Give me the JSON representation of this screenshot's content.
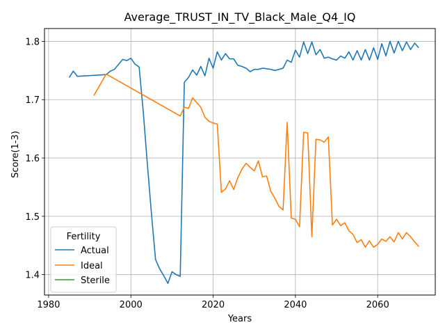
{
  "chart_data": {
    "type": "line",
    "title": "Average_TRUST_IN_TV_Black_Male_Q4_IQ",
    "xlabel": "Years",
    "ylabel": "Score(1-3)",
    "xlim": [
      1979,
      2074
    ],
    "ylim": [
      1.365,
      1.822
    ],
    "xticks": [
      1980,
      2000,
      2020,
      2040,
      2060
    ],
    "yticks": [
      1.4,
      1.5,
      1.6,
      1.7,
      1.8
    ],
    "grid": true,
    "legend": {
      "title": "Fertility",
      "placement": "lower-left"
    },
    "series": [
      {
        "name": "Actual",
        "color": "#1f77b4",
        "x": [
          1985,
          1986,
          1987,
          1994,
          1995,
          1996,
          1998,
          1999,
          2000,
          2001,
          2002,
          2003,
          2004,
          2005,
          2006,
          2007,
          2008,
          2009,
          2010,
          2011,
          2012,
          2013,
          2014,
          2015,
          2016,
          2017,
          2018,
          2019,
          2020,
          2021,
          2022,
          2023,
          2024,
          2025,
          2026,
          2027,
          2028,
          2029,
          2030,
          2031,
          2032,
          2033,
          2034,
          2035,
          2036,
          2037,
          2038,
          2039,
          2040,
          2041,
          2042,
          2043,
          2044,
          2045,
          2046,
          2047,
          2048,
          2049,
          2050,
          2051,
          2052,
          2053,
          2054,
          2055,
          2056,
          2057,
          2058,
          2059,
          2060,
          2061,
          2062,
          2063,
          2064,
          2065,
          2066,
          2067,
          2068,
          2069,
          2070
        ],
        "values": [
          1.738,
          1.749,
          1.74,
          1.743,
          1.749,
          1.752,
          1.769,
          1.767,
          1.771,
          1.761,
          1.756,
          1.68,
          1.59,
          1.505,
          1.426,
          1.41,
          1.398,
          1.385,
          1.405,
          1.4,
          1.397,
          1.73,
          1.738,
          1.751,
          1.742,
          1.757,
          1.741,
          1.771,
          1.754,
          1.782,
          1.768,
          1.779,
          1.77,
          1.77,
          1.759,
          1.757,
          1.754,
          1.748,
          1.752,
          1.752,
          1.754,
          1.753,
          1.752,
          1.75,
          1.752,
          1.754,
          1.768,
          1.764,
          1.785,
          1.773,
          1.799,
          1.779,
          1.799,
          1.777,
          1.786,
          1.771,
          1.773,
          1.77,
          1.768,
          1.775,
          1.771,
          1.782,
          1.768,
          1.784,
          1.768,
          1.786,
          1.768,
          1.789,
          1.769,
          1.796,
          1.775,
          1.8,
          1.78,
          1.8,
          1.784,
          1.799,
          1.786,
          1.797,
          1.789
        ]
      },
      {
        "name": "Ideal",
        "color": "#ff7f0e",
        "x": [
          1991,
          1994,
          2012,
          2013,
          2014,
          2015,
          2016,
          2017,
          2018,
          2019,
          2020,
          2021,
          2022,
          2023,
          2024,
          2025,
          2026,
          2027,
          2028,
          2029,
          2030,
          2031,
          2032,
          2033,
          2034,
          2035,
          2036,
          2037,
          2038,
          2039,
          2040,
          2041,
          2042,
          2043,
          2044,
          2045,
          2046,
          2047,
          2048,
          2049,
          2050,
          2051,
          2052,
          2053,
          2054,
          2055,
          2056,
          2057,
          2058,
          2059,
          2060,
          2061,
          2062,
          2063,
          2064,
          2065,
          2066,
          2067,
          2068,
          2069,
          2070
        ],
        "values": [
          1.707,
          1.744,
          1.672,
          1.687,
          1.685,
          1.703,
          1.695,
          1.687,
          1.67,
          1.663,
          1.66,
          1.658,
          1.541,
          1.547,
          1.561,
          1.546,
          1.566,
          1.581,
          1.591,
          1.584,
          1.578,
          1.595,
          1.568,
          1.569,
          1.543,
          1.531,
          1.517,
          1.511,
          1.661,
          1.497,
          1.495,
          1.482,
          1.644,
          1.643,
          1.465,
          1.632,
          1.631,
          1.627,
          1.636,
          1.485,
          1.495,
          1.484,
          1.489,
          1.475,
          1.469,
          1.455,
          1.46,
          1.447,
          1.458,
          1.447,
          1.452,
          1.461,
          1.457,
          1.465,
          1.456,
          1.472,
          1.461,
          1.472,
          1.465,
          1.456,
          1.448
        ]
      },
      {
        "name": "Sterile",
        "color": "#2ca02c",
        "x": [],
        "values": []
      }
    ]
  }
}
